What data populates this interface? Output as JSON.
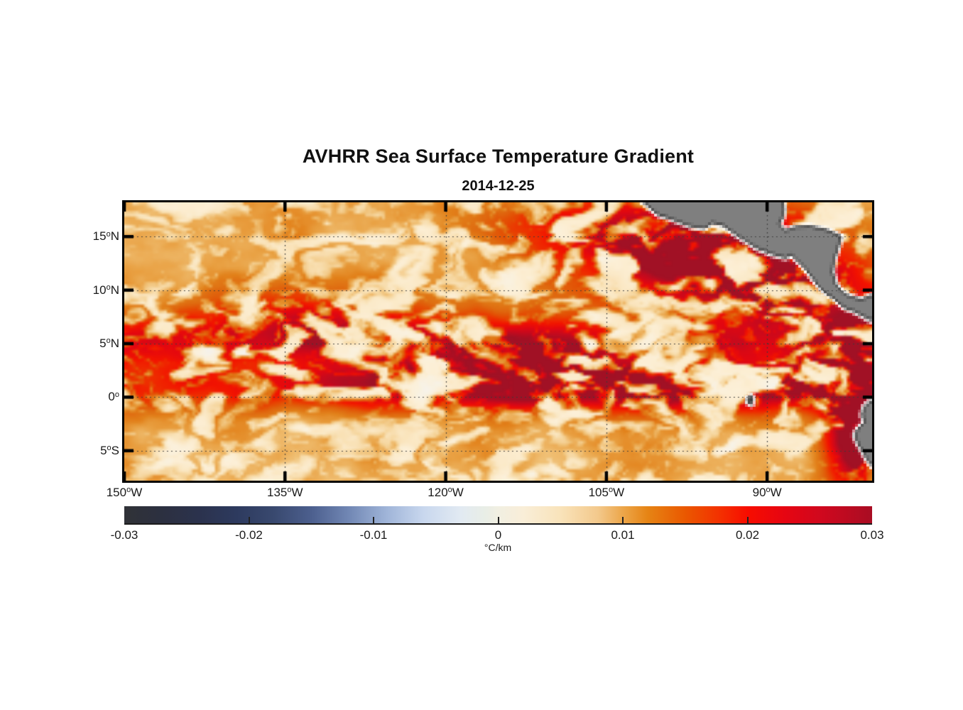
{
  "chart_data": {
    "type": "heatmap",
    "title": "AVHRR Sea Surface Temperature Gradient",
    "subtitle": "2014-12-25",
    "variable": "sea surface temperature gradient",
    "units_label": "°C/km",
    "lon_range": [
      -150,
      -80.2
    ],
    "lat_range": [
      -7.8,
      18.2
    ],
    "lon_ticks": [
      {
        "num": "150",
        "deg": "o",
        "hemi": "W",
        "value": -150
      },
      {
        "num": "135",
        "deg": "o",
        "hemi": "W",
        "value": -135
      },
      {
        "num": "120",
        "deg": "o",
        "hemi": "W",
        "value": -120
      },
      {
        "num": "105",
        "deg": "o",
        "hemi": "W",
        "value": -105
      },
      {
        "num": "90",
        "deg": "o",
        "hemi": "W",
        "value": -90
      }
    ],
    "lat_ticks": [
      {
        "num": "15",
        "deg": "o",
        "hemi": "N",
        "value": 15
      },
      {
        "num": "10",
        "deg": "o",
        "hemi": "N",
        "value": 10
      },
      {
        "num": "5",
        "deg": "o",
        "hemi": "N",
        "value": 5
      },
      {
        "num": "0",
        "deg": "o",
        "hemi": "",
        "value": 0
      },
      {
        "num": "5",
        "deg": "o",
        "hemi": "S",
        "value": -5
      }
    ],
    "grid": {
      "style": "dotted",
      "color": "#3b3b3b",
      "lat_lines": [
        15,
        10,
        5,
        0,
        -5
      ],
      "lon_lines": [
        -135,
        -120,
        -105,
        -90
      ]
    },
    "axis": {
      "frame_color": "#000000",
      "tick_color": "#000000",
      "tick_length": 13,
      "tick_width": 4.5,
      "ticks_inward": true
    },
    "colorbar": {
      "orientation": "horizontal",
      "min": -0.03,
      "max": 0.03,
      "tick_labels": [
        "-0.03",
        "-0.02",
        "-0.01",
        "0",
        "0.01",
        "0.02",
        "0.03"
      ],
      "tick_values": [
        -0.03,
        -0.02,
        -0.01,
        0,
        0.01,
        0.02,
        0.03
      ],
      "inner_tick_values": [
        -0.02,
        -0.01,
        0,
        0.01,
        0.02
      ],
      "units_label": "°C/km",
      "stops": [
        {
          "v": -0.03,
          "c": "#303237"
        },
        {
          "v": -0.027,
          "c": "#2c3040"
        },
        {
          "v": -0.024,
          "c": "#2b324d"
        },
        {
          "v": -0.021,
          "c": "#2d3a5e"
        },
        {
          "v": -0.018,
          "c": "#39496f"
        },
        {
          "v": -0.015,
          "c": "#4c5f8e"
        },
        {
          "v": -0.012,
          "c": "#7187b4"
        },
        {
          "v": -0.009,
          "c": "#9fb4d8"
        },
        {
          "v": -0.006,
          "c": "#c8d7ee"
        },
        {
          "v": -0.003,
          "c": "#e2eaf2"
        },
        {
          "v": -0.001,
          "c": "#e9eee6"
        },
        {
          "v": 0.0,
          "c": "#f1efe2"
        },
        {
          "v": 0.002,
          "c": "#f9eed8"
        },
        {
          "v": 0.005,
          "c": "#f9e3ba"
        },
        {
          "v": 0.008,
          "c": "#f3c98c"
        },
        {
          "v": 0.01,
          "c": "#eca64a"
        },
        {
          "v": 0.012,
          "c": "#e68414"
        },
        {
          "v": 0.015,
          "c": "#ea5800"
        },
        {
          "v": 0.018,
          "c": "#f42d00"
        },
        {
          "v": 0.02,
          "c": "#f70d00"
        },
        {
          "v": 0.023,
          "c": "#e60512"
        },
        {
          "v": 0.026,
          "c": "#cf081e"
        },
        {
          "v": 0.03,
          "c": "#a90d23"
        }
      ]
    },
    "map_colormap": [
      {
        "v": -0.008,
        "c": "#cdc3e2"
      },
      {
        "v": -0.004,
        "c": "#ded5ec"
      },
      {
        "v": -0.002,
        "c": "#eae3f0"
      },
      {
        "v": 0.0,
        "c": "#f7f3ea"
      },
      {
        "v": 0.002,
        "c": "#fcf0d8"
      },
      {
        "v": 0.004,
        "c": "#fbe8c4"
      },
      {
        "v": 0.006,
        "c": "#f7d9a4"
      },
      {
        "v": 0.008,
        "c": "#f0c075"
      },
      {
        "v": 0.01,
        "c": "#e9a143"
      },
      {
        "v": 0.012,
        "c": "#e2811a"
      },
      {
        "v": 0.014,
        "c": "#df6a10"
      },
      {
        "v": 0.016,
        "c": "#e44e04"
      },
      {
        "v": 0.018,
        "c": "#ee2e00"
      },
      {
        "v": 0.02,
        "c": "#f31400"
      },
      {
        "v": 0.023,
        "c": "#e30711"
      },
      {
        "v": 0.026,
        "c": "#c70a1e"
      },
      {
        "v": 0.03,
        "c": "#9c1226"
      }
    ],
    "land": {
      "fill": "#7f7f7f",
      "outline": "#000000",
      "coastal_mask": "#ffffff",
      "polygons": {
        "central_america": [
          [
            -101.8,
            18.45
          ],
          [
            -100.2,
            17.1
          ],
          [
            -98.8,
            16.6
          ],
          [
            -97.2,
            16.0
          ],
          [
            -95.9,
            15.8
          ],
          [
            -95.1,
            16.3
          ],
          [
            -94.2,
            16.1
          ],
          [
            -93.2,
            15.4
          ],
          [
            -92.0,
            14.6
          ],
          [
            -90.8,
            13.9
          ],
          [
            -89.5,
            13.4
          ],
          [
            -88.3,
            13.05
          ],
          [
            -87.7,
            13.3
          ],
          [
            -87.2,
            12.85
          ],
          [
            -86.3,
            11.9
          ],
          [
            -85.7,
            11.1
          ],
          [
            -85.1,
            10.3
          ],
          [
            -84.6,
            9.8
          ],
          [
            -83.7,
            9.2
          ],
          [
            -82.8,
            8.4
          ],
          [
            -81.9,
            8.05
          ],
          [
            -81.0,
            7.6
          ],
          [
            -80.35,
            7.2
          ],
          [
            -79.8,
            7.9
          ],
          [
            -79.8,
            9.7
          ],
          [
            -81.2,
            9.1
          ],
          [
            -82.3,
            9.4
          ],
          [
            -83.05,
            9.85
          ],
          [
            -83.6,
            10.6
          ],
          [
            -83.9,
            11.7
          ],
          [
            -83.75,
            12.8
          ],
          [
            -83.3,
            14.2
          ],
          [
            -83.1,
            15.0
          ],
          [
            -84.4,
            15.6
          ],
          [
            -85.9,
            15.95
          ],
          [
            -87.3,
            15.9
          ],
          [
            -88.2,
            15.55
          ],
          [
            -88.9,
            16.1
          ],
          [
            -88.5,
            16.9
          ],
          [
            -88.4,
            17.6
          ],
          [
            -88.6,
            18.45
          ]
        ],
        "south_america": [
          [
            -79.8,
            -0.05
          ],
          [
            -80.5,
            -0.5
          ],
          [
            -80.95,
            -1.0
          ],
          [
            -81.1,
            -1.7
          ],
          [
            -80.85,
            -2.35
          ],
          [
            -81.5,
            -2.95
          ],
          [
            -81.8,
            -3.55
          ],
          [
            -81.5,
            -4.3
          ],
          [
            -81.05,
            -5.1
          ],
          [
            -80.6,
            -5.9
          ],
          [
            -80.25,
            -6.35
          ],
          [
            -79.8,
            -6.75
          ]
        ],
        "galapagos": [
          [
            -91.8,
            -0.05
          ],
          [
            -91.45,
            0.1
          ],
          [
            -91.3,
            -0.3
          ],
          [
            -91.55,
            -0.28
          ],
          [
            -91.42,
            -0.68
          ],
          [
            -91.85,
            -0.45
          ]
        ]
      }
    },
    "field": {
      "background_value": 0.002,
      "base_intensity": 0.34,
      "zones": [
        {
          "name": "necc-front-5n",
          "amp": 0.55,
          "lat_c": 5.0,
          "lat_s": 1.7,
          "lon_c": null,
          "lon_s": null
        },
        {
          "name": "equatorial-front",
          "amp": 0.45,
          "lat_c": 0.9,
          "lat_s": 1.5,
          "lon_c": null,
          "lon_s": null
        },
        {
          "name": "equatorial-front-east",
          "amp": 0.75,
          "lat_c": 0.9,
          "lat_s": 1.4,
          "lon_c": -100,
          "lon_s": 22
        },
        {
          "name": "tehuantepec-eddies",
          "amp": 1.25,
          "lat_c": 13.2,
          "lat_s": 3.2,
          "lon_c": -96,
          "lon_s": 7
        },
        {
          "name": "papagayo-jet",
          "amp": 0.85,
          "lat_c": 10.5,
          "lat_s": 2.6,
          "lon_c": -87.5,
          "lon_s": 4.5
        },
        {
          "name": "panama-bight",
          "amp": 0.6,
          "lat_c": 6.5,
          "lat_s": 2.2,
          "lon_c": -80.5,
          "lon_s": 3.0
        },
        {
          "name": "peru-coastal-upwelling",
          "amp": 1.7,
          "lat_c": -2.5,
          "lat_s": 4.5,
          "lon_c": -81.3,
          "lon_s": 2.0
        },
        {
          "name": "mexico-offshore",
          "amp": 0.5,
          "lat_c": 16.0,
          "lat_s": 2.2,
          "lon_c": -104,
          "lon_s": 9
        },
        {
          "name": "northwest-cluster",
          "amp": 0.5,
          "lat_c": 7.5,
          "lat_s": 2.0,
          "lon_c": -133,
          "lon_s": 8
        },
        {
          "name": "south-branch",
          "amp": 0.45,
          "lat_c": 3.5,
          "lat_s": 2.2,
          "lon_c": -117,
          "lon_s": 10
        }
      ]
    }
  }
}
